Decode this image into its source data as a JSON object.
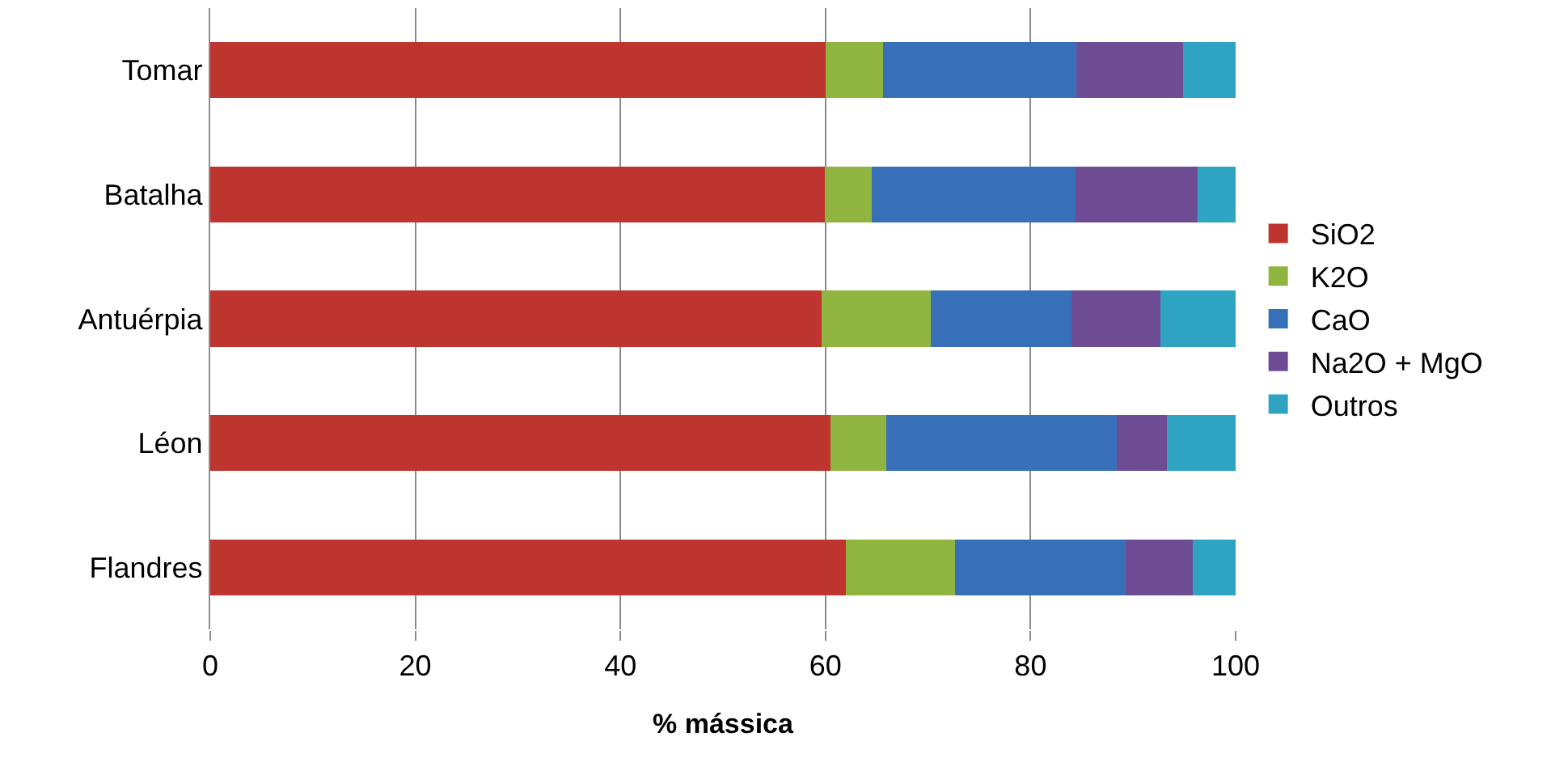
{
  "chart_data": {
    "type": "bar",
    "orientation": "horizontal",
    "stacked": true,
    "xlabel": "% mássica",
    "categories": [
      "Tomar",
      "Batalha",
      "Antuérpia",
      "Léon",
      "Flandres"
    ],
    "series": [
      {
        "name": "SiO2",
        "color": "#be3530",
        "values": [
          60.0,
          59.9,
          59.6,
          60.5,
          62.0
        ]
      },
      {
        "name": "K2O",
        "color": "#8fb440",
        "values": [
          5.6,
          4.6,
          10.7,
          5.4,
          10.6
        ]
      },
      {
        "name": "CaO",
        "color": "#3770b8",
        "values": [
          18.9,
          19.9,
          13.7,
          22.5,
          16.7
        ]
      },
      {
        "name": "Na2O + MgO",
        "color": "#6d4c94",
        "values": [
          10.4,
          11.9,
          8.7,
          4.9,
          6.5
        ]
      },
      {
        "name": "Outros",
        "color": "#2ea3c2",
        "values": [
          5.1,
          3.7,
          7.3,
          6.7,
          4.2
        ]
      }
    ],
    "xlim": [
      0,
      100
    ],
    "xticks": [
      0,
      20,
      40,
      60,
      80,
      100
    ],
    "grid": "x",
    "legend": "right"
  }
}
